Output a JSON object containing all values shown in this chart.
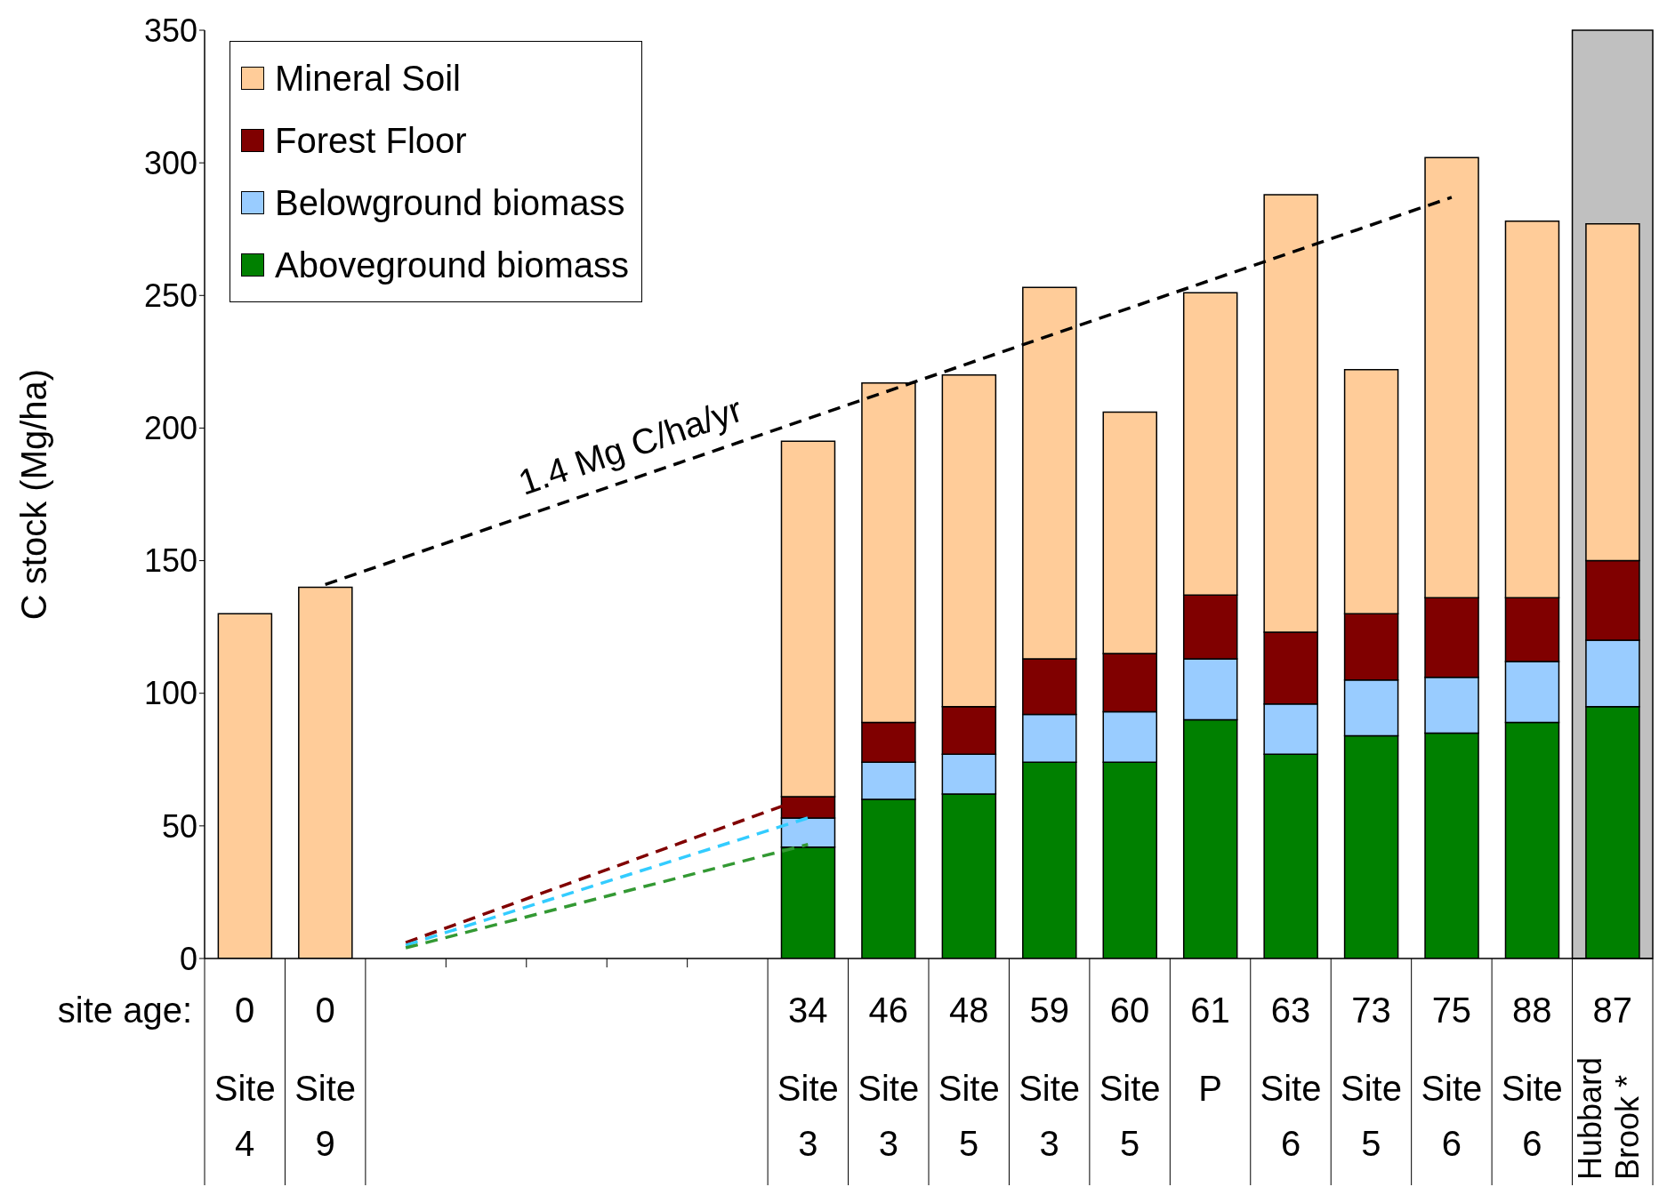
{
  "chart_data": {
    "type": "bar",
    "stacked": true,
    "ylabel": "C stock (Mg/ha)",
    "ylim": [
      0,
      350
    ],
    "yticks": [
      0,
      50,
      100,
      150,
      200,
      250,
      300,
      350
    ],
    "legend": "top left",
    "categories": [
      "0\nSite 4",
      "0\nSite 9",
      null,
      null,
      null,
      null,
      null,
      "34\nSite 3",
      "46\nSite 3",
      "48\nSite 5",
      "59\nSite 3",
      "60\nSite 5",
      "61\nP",
      "63\nSite 6",
      "73\nSite 5",
      "75\nSite 6",
      "88\nSite 6",
      "87\nHubbard Brook *"
    ],
    "series": [
      {
        "name": "Aboveground biomass",
        "color": "#008000",
        "values": [
          null,
          null,
          null,
          null,
          null,
          null,
          null,
          42,
          60,
          62,
          74,
          74,
          90,
          77,
          84,
          85,
          89,
          95
        ]
      },
      {
        "name": "Belowground biomass",
        "color": "#99ccff",
        "values": [
          null,
          null,
          null,
          null,
          null,
          null,
          null,
          11,
          14,
          15,
          18,
          19,
          23,
          19,
          21,
          21,
          23,
          25
        ]
      },
      {
        "name": "Forest Floor",
        "color": "#800000",
        "values": [
          null,
          null,
          null,
          null,
          null,
          null,
          null,
          8,
          15,
          18,
          21,
          22,
          24,
          27,
          25,
          30,
          24,
          30
        ]
      },
      {
        "name": "Mineral Soil",
        "color": "#ffcc99",
        "values": [
          130,
          140,
          null,
          null,
          null,
          null,
          null,
          134,
          128,
          125,
          140,
          91,
          114,
          165,
          92,
          166,
          142,
          127
        ]
      },
      {
        "type": "line",
        "color": "#000000",
        "line_style": "dashed",
        "values": [
          null,
          141,
          null,
          null,
          null,
          null,
          null,
          null,
          null,
          null,
          null,
          null,
          null,
          null,
          null,
          287,
          null,
          null
        ]
      },
      {
        "type": "line",
        "color": "#800000",
        "line_style": "dashed",
        "values": [
          null,
          null,
          6,
          null,
          null,
          null,
          null,
          61,
          null,
          null,
          null,
          null,
          null,
          null,
          null,
          null,
          null,
          null
        ]
      },
      {
        "type": "line",
        "color": "#33ccff",
        "line_style": "dashed",
        "values": [
          null,
          null,
          5,
          null,
          null,
          null,
          null,
          53,
          null,
          null,
          null,
          null,
          null,
          null,
          null,
          null,
          null,
          null
        ]
      },
      {
        "type": "line",
        "color": "#339933",
        "line_style": "dashed",
        "values": [
          null,
          null,
          4,
          null,
          null,
          null,
          null,
          43,
          null,
          null,
          null,
          null,
          null,
          null,
          null,
          null,
          null,
          null
        ]
      }
    ],
    "bands": [
      {
        "axis": "x",
        "from": "87\nHubbard Brook *",
        "to": "87\nHubbard Brook *",
        "color": "#c0c0c0"
      }
    ],
    "annotations": [
      "site age:",
      "1.4 Mg C/ha/yr"
    ]
  }
}
